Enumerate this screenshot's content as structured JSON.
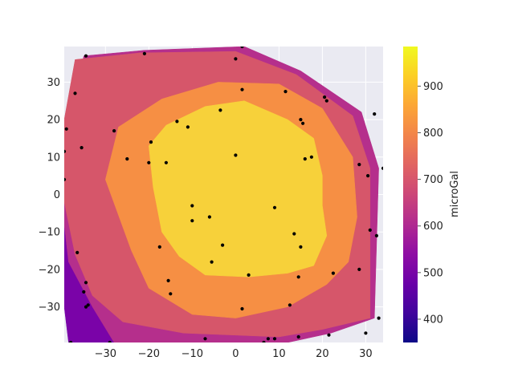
{
  "chart_data": {
    "type": "contour",
    "title": "",
    "xlabel": "",
    "ylabel": "",
    "xlim": [
      -39.5,
      34
    ],
    "ylim": [
      -39.5,
      39.5
    ],
    "x_ticks": [
      -30,
      -20,
      -10,
      0,
      10,
      20,
      30
    ],
    "y_ticks": [
      -30,
      -20,
      -10,
      0,
      10,
      20,
      30
    ],
    "x_tick_labels": [
      "−30",
      "−20",
      "−10",
      "0",
      "10",
      "20",
      "30"
    ],
    "y_tick_labels": [
      "−30",
      "−20",
      "−10",
      "0",
      "10",
      "20",
      "30"
    ],
    "background_color": "#EAEAF2",
    "grid": true,
    "colorbar": {
      "label": "microGal",
      "range": [
        350,
        985
      ],
      "ticks": [
        400,
        500,
        600,
        700,
        800,
        900
      ],
      "tick_labels": [
        "400",
        "500",
        "600",
        "700",
        "800",
        "900"
      ],
      "colormap": "plasma",
      "colormap_stops": [
        "#0d0887",
        "#41049d",
        "#6a00a8",
        "#8f0da4",
        "#b12a90",
        "#cc4778",
        "#e16462",
        "#f2844b",
        "#fca636",
        "#fcce25",
        "#f0f921"
      ]
    },
    "contour_levels": [
      {
        "range": [
          350,
          450
        ],
        "color": "#3a049a",
        "polygon": [
          [
            -38.5,
            -39.5
          ],
          [
            -28,
            -39.5
          ],
          [
            -34,
            -30
          ],
          [
            -38.5,
            -25
          ]
        ]
      },
      {
        "range": [
          450,
          550
        ],
        "color": "#7a03a8",
        "polygon": [
          [
            -39.5,
            -8
          ],
          [
            -36,
            -18
          ],
          [
            -29,
            -28
          ],
          [
            -22,
            -39.5
          ],
          [
            -38.5,
            -39.5
          ],
          [
            -39.5,
            -30
          ]
        ]
      },
      {
        "range": [
          550,
          650
        ],
        "color": "#b52f8c",
        "polygon": [
          [
            -35,
            37
          ],
          [
            -21,
            38.5
          ],
          [
            2,
            39.5
          ],
          [
            15,
            33
          ],
          [
            29,
            22
          ],
          [
            33,
            7
          ],
          [
            32,
            -33
          ],
          [
            22,
            -37
          ],
          [
            12,
            -39.5
          ],
          [
            -28,
            -39.5
          ],
          [
            -33,
            -30
          ],
          [
            -38.5,
            -18
          ],
          [
            -39.5,
            -8
          ],
          [
            -39.5,
            12
          ]
        ]
      },
      {
        "range": [
          650,
          750
        ],
        "color": "#d6566a",
        "polygon": [
          [
            -37,
            36
          ],
          [
            -22,
            37.8
          ],
          [
            0,
            38.2
          ],
          [
            14,
            32
          ],
          [
            27,
            21
          ],
          [
            31,
            7
          ],
          [
            31,
            -33
          ],
          [
            20,
            -36
          ],
          [
            10,
            -38
          ],
          [
            -12,
            -37
          ],
          [
            -26,
            -34
          ],
          [
            -33,
            -27
          ],
          [
            -37,
            -16
          ],
          [
            -39.5,
            -2
          ],
          [
            -39.5,
            20
          ]
        ]
      },
      {
        "range": [
          750,
          850
        ],
        "color": "#f68f44",
        "polygon": [
          [
            -27,
            18
          ],
          [
            -17,
            25.5
          ],
          [
            -4,
            30
          ],
          [
            10,
            29.5
          ],
          [
            20,
            23
          ],
          [
            27,
            10
          ],
          [
            28,
            -6
          ],
          [
            26,
            -18
          ],
          [
            21,
            -24
          ],
          [
            12,
            -30
          ],
          [
            0,
            -33
          ],
          [
            -10,
            -32
          ],
          [
            -20,
            -25
          ],
          [
            -24,
            -15
          ],
          [
            -30,
            4
          ]
        ]
      },
      {
        "range": [
          850,
          950
        ],
        "color": "#f7d13a",
        "polygon": [
          [
            -20,
            13
          ],
          [
            -16,
            18.5
          ],
          [
            -7,
            23.5
          ],
          [
            2,
            25
          ],
          [
            12,
            20
          ],
          [
            18,
            15
          ],
          [
            20,
            5
          ],
          [
            20,
            -3
          ],
          [
            21,
            -11
          ],
          [
            18,
            -19
          ],
          [
            12,
            -21
          ],
          [
            3,
            -22
          ],
          [
            -7,
            -21.5
          ],
          [
            -13,
            -16.5
          ],
          [
            -17,
            -10
          ],
          [
            -19,
            2
          ]
        ]
      }
    ],
    "points": [
      [
        1.5,
        39.5
      ],
      [
        -21,
        37.6
      ],
      [
        -34.5,
        37
      ],
      [
        0,
        36.2
      ],
      [
        -37,
        27
      ],
      [
        1.5,
        28
      ],
      [
        11.5,
        27.5
      ],
      [
        20.5,
        26
      ],
      [
        21,
        25
      ],
      [
        -3.5,
        22.5
      ],
      [
        32,
        21.5
      ],
      [
        -13.5,
        19.5
      ],
      [
        -11,
        18
      ],
      [
        15,
        20
      ],
      [
        15.5,
        19
      ],
      [
        -39,
        17.5
      ],
      [
        -28,
        17
      ],
      [
        -19.5,
        14
      ],
      [
        -35.5,
        12.5
      ],
      [
        -39.5,
        11.5
      ],
      [
        0,
        10.5
      ],
      [
        17.5,
        10
      ],
      [
        16,
        9.5
      ],
      [
        -25,
        9.5
      ],
      [
        -20,
        8.5
      ],
      [
        -16,
        8.5
      ],
      [
        28.5,
        8
      ],
      [
        34,
        7
      ],
      [
        30.5,
        5
      ],
      [
        -39.5,
        4
      ],
      [
        -10,
        -3
      ],
      [
        9,
        -3.5
      ],
      [
        -6,
        -6
      ],
      [
        -10,
        -7
      ],
      [
        31,
        -9.5
      ],
      [
        13.5,
        -10.5
      ],
      [
        32.5,
        -11
      ],
      [
        -17.5,
        -14
      ],
      [
        -3,
        -13.5
      ],
      [
        15,
        -14
      ],
      [
        -36.5,
        -15.5
      ],
      [
        -5.5,
        -18
      ],
      [
        28.5,
        -20
      ],
      [
        22.5,
        -21
      ],
      [
        3,
        -21.5
      ],
      [
        14.5,
        -22
      ],
      [
        -15.5,
        -23
      ],
      [
        -34.5,
        -23.5
      ],
      [
        -35,
        -26
      ],
      [
        -15,
        -26.5
      ],
      [
        -34,
        -29.5
      ],
      [
        -34.5,
        -30
      ],
      [
        12.5,
        -29.5
      ],
      [
        1.5,
        -30.5
      ],
      [
        33,
        -33
      ],
      [
        30,
        -37
      ],
      [
        21.5,
        -37.5
      ],
      [
        14.5,
        -38
      ],
      [
        -7,
        -38.5
      ],
      [
        7.5,
        -38.5
      ],
      [
        9,
        -38.5
      ],
      [
        -29,
        -39.5
      ],
      [
        -38,
        -39.5
      ],
      [
        6.5,
        -39.5
      ]
    ]
  }
}
